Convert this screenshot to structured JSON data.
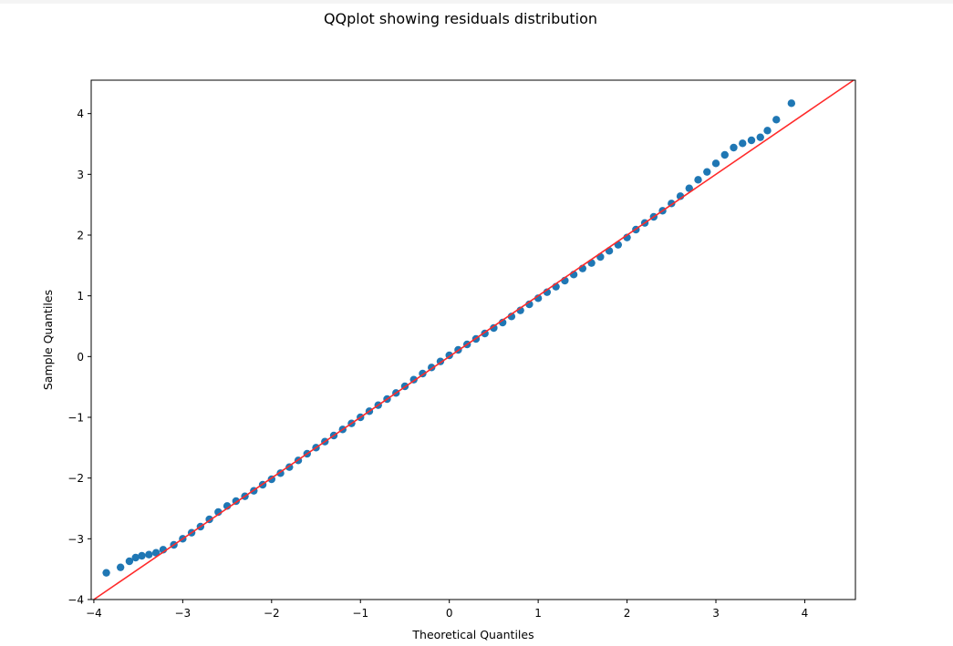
{
  "chart_data": {
    "type": "scatter",
    "title": "QQplot showing residuals distribution",
    "xlabel": "Theoretical Quantiles",
    "ylabel": "Sample Quantiles",
    "xlim": [
      -4.03,
      4.57
    ],
    "ylim": [
      -4.0,
      4.55
    ],
    "xticks": [
      -4,
      -3,
      -2,
      -1,
      0,
      1,
      2,
      3,
      4
    ],
    "yticks": [
      -4,
      -3,
      -2,
      -1,
      0,
      1,
      2,
      3,
      4
    ],
    "grid": false,
    "legend": "none",
    "point_color": "#1f77b4",
    "reference_line": {
      "color": "#ff2a2a",
      "slope": 1,
      "intercept": 0
    },
    "points": [
      [
        -3.86,
        -3.56
      ],
      [
        -3.7,
        -3.47
      ],
      [
        -3.6,
        -3.37
      ],
      [
        -3.53,
        -3.31
      ],
      [
        -3.46,
        -3.28
      ],
      [
        -3.38,
        -3.26
      ],
      [
        -3.3,
        -3.23
      ],
      [
        -3.22,
        -3.18
      ],
      [
        -3.1,
        -3.1
      ],
      [
        -3.0,
        -3.0
      ],
      [
        -2.9,
        -2.9
      ],
      [
        -2.8,
        -2.8
      ],
      [
        -2.7,
        -2.68
      ],
      [
        -2.6,
        -2.56
      ],
      [
        -2.5,
        -2.46
      ],
      [
        -2.4,
        -2.38
      ],
      [
        -2.3,
        -2.3
      ],
      [
        -2.2,
        -2.21
      ],
      [
        -2.1,
        -2.11
      ],
      [
        -2.0,
        -2.02
      ],
      [
        -1.9,
        -1.92
      ],
      [
        -1.8,
        -1.82
      ],
      [
        -1.7,
        -1.71
      ],
      [
        -1.6,
        -1.6
      ],
      [
        -1.5,
        -1.5
      ],
      [
        -1.4,
        -1.4
      ],
      [
        -1.3,
        -1.3
      ],
      [
        -1.2,
        -1.2
      ],
      [
        -1.1,
        -1.1
      ],
      [
        -1.0,
        -1.0
      ],
      [
        -0.9,
        -0.9
      ],
      [
        -0.8,
        -0.8
      ],
      [
        -0.7,
        -0.7
      ],
      [
        -0.6,
        -0.6
      ],
      [
        -0.5,
        -0.49
      ],
      [
        -0.4,
        -0.38
      ],
      [
        -0.3,
        -0.28
      ],
      [
        -0.2,
        -0.18
      ],
      [
        -0.1,
        -0.08
      ],
      [
        0.0,
        0.02
      ],
      [
        0.1,
        0.11
      ],
      [
        0.2,
        0.2
      ],
      [
        0.3,
        0.29
      ],
      [
        0.4,
        0.38
      ],
      [
        0.5,
        0.47
      ],
      [
        0.6,
        0.56
      ],
      [
        0.7,
        0.66
      ],
      [
        0.8,
        0.76
      ],
      [
        0.9,
        0.86
      ],
      [
        1.0,
        0.96
      ],
      [
        1.1,
        1.06
      ],
      [
        1.2,
        1.15
      ],
      [
        1.3,
        1.25
      ],
      [
        1.4,
        1.35
      ],
      [
        1.5,
        1.45
      ],
      [
        1.6,
        1.54
      ],
      [
        1.7,
        1.64
      ],
      [
        1.8,
        1.74
      ],
      [
        1.9,
        1.84
      ],
      [
        2.0,
        1.96
      ],
      [
        2.1,
        2.09
      ],
      [
        2.2,
        2.2
      ],
      [
        2.3,
        2.3
      ],
      [
        2.4,
        2.4
      ],
      [
        2.5,
        2.52
      ],
      [
        2.6,
        2.64
      ],
      [
        2.7,
        2.77
      ],
      [
        2.8,
        2.91
      ],
      [
        2.9,
        3.04
      ],
      [
        3.0,
        3.18
      ],
      [
        3.1,
        3.32
      ],
      [
        3.2,
        3.44
      ],
      [
        3.3,
        3.51
      ],
      [
        3.4,
        3.56
      ],
      [
        3.5,
        3.61
      ],
      [
        3.58,
        3.72
      ],
      [
        3.68,
        3.9
      ],
      [
        3.85,
        4.17
      ]
    ]
  }
}
